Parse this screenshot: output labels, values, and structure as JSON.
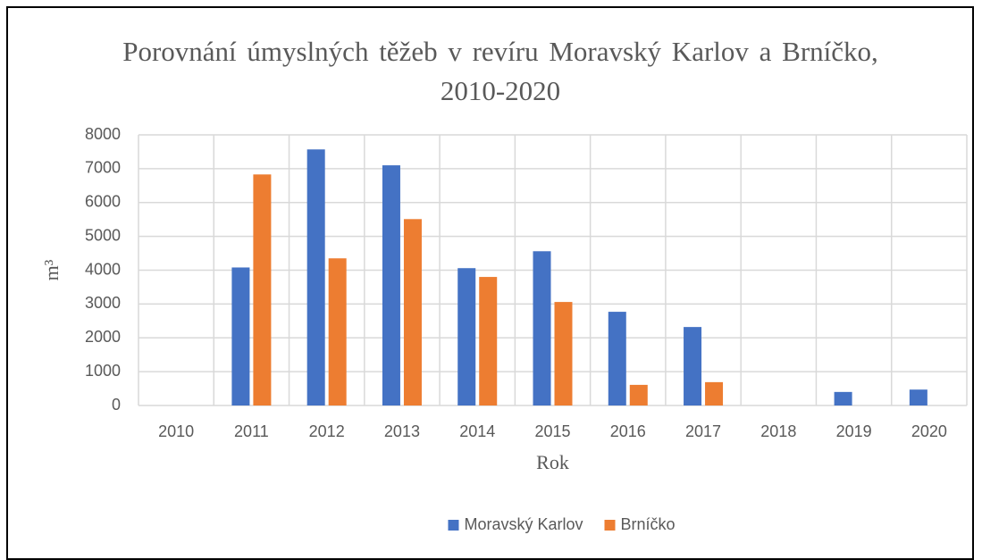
{
  "chart_data": {
    "type": "bar",
    "title": "Porovnání úmyslných těžeb v revíru Moravský Karlov a Brníčko, 2010-2020",
    "x_label": "Rok",
    "y_label": "m³",
    "categories": [
      "2010",
      "2011",
      "2012",
      "2013",
      "2014",
      "2015",
      "2016",
      "2017",
      "2018",
      "2019",
      "2020"
    ],
    "series": [
      {
        "name": "Moravský Karlov",
        "color": "#4472c4",
        "values": [
          0,
          4080,
          7570,
          7100,
          4060,
          4560,
          2770,
          2320,
          0,
          400,
          470
        ]
      },
      {
        "name": "Brníčko",
        "color": "#ed7d31",
        "values": [
          0,
          6830,
          4350,
          5510,
          3800,
          3060,
          610,
          690,
          0,
          0,
          0
        ]
      }
    ],
    "ylim": [
      0,
      8000
    ],
    "yticks": [
      0,
      1000,
      2000,
      3000,
      4000,
      5000,
      6000,
      7000,
      8000
    ],
    "grid": true,
    "legend": "bottom"
  }
}
